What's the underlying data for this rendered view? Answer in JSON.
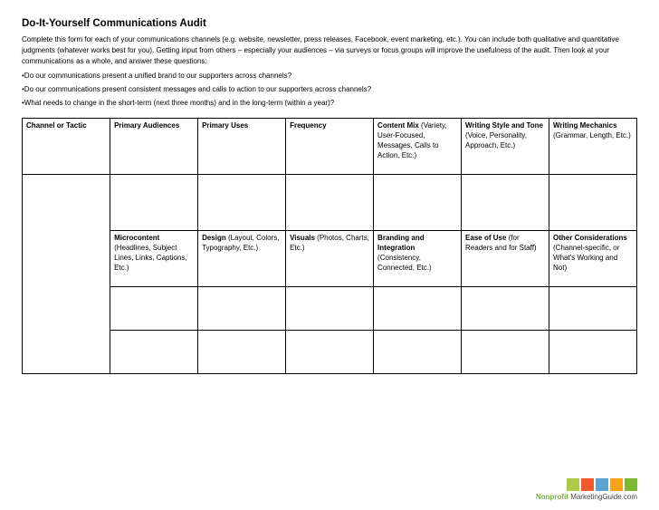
{
  "title": "Do-It-Yourself Communications Audit",
  "intro": "Complete this form for each of your communications channels (e.g. website, newsletter, press releases, Facebook, event marketing, etc.). You can include both qualitative and quantitative judgments (whatever works best for you). Getting input from others – especially your audiences – via surveys or focus groups will improve the usefulness of the audit. Then look at your communications as a whole, and answer these questions:",
  "bullets": [
    "•Do our communications present a unified brand to our supporters across channels?",
    "•Do our communications present consistent messages and calls to action to our supporters across channels?",
    "•What needs to change in the short-term (next three months) and in the long-term (within a year)?"
  ],
  "row1": [
    {
      "bold": "Channel or Tactic",
      "rest": ""
    },
    {
      "bold": "Primary Audiences",
      "rest": ""
    },
    {
      "bold": "Primary Uses",
      "rest": ""
    },
    {
      "bold": "Frequency",
      "rest": ""
    },
    {
      "bold": "Content Mix",
      "rest": " (Variety, User-Focused, Messages, Calls to Action, Etc.)"
    },
    {
      "bold": "Writing Style and Tone",
      "rest": " (Voice, Personality, Approach, Etc.)"
    },
    {
      "bold": "Writing Mechanics",
      "rest": " (Grammar, Length, Etc.)"
    }
  ],
  "row3": [
    {
      "bold": "Microcontent",
      "rest": " (Headlines, Subject Lines, Links, Captions, Etc.)"
    },
    {
      "bold": "Design",
      "rest": " (Layout, Colors, Typography, Etc.)"
    },
    {
      "bold": "Visuals",
      "rest": " (Photos, Charts, Etc.)"
    },
    {
      "bold": "Branding and Integration",
      "rest": " (Consistency, Connected, Etc.)"
    },
    {
      "bold": "Ease of Use",
      "rest": " (for Readers and for Staff)"
    },
    {
      "bold": "Other Considerations",
      "rest": " (Channel-specific, or What's Working and Not)"
    }
  ],
  "footer": {
    "colors": [
      "#b0c84a",
      "#f0592b",
      "#5aa3d0",
      "#f6a11a",
      "#78b833"
    ],
    "brand_bold": "Nonprofit",
    "brand_rest": " MarketingGuide.com"
  }
}
